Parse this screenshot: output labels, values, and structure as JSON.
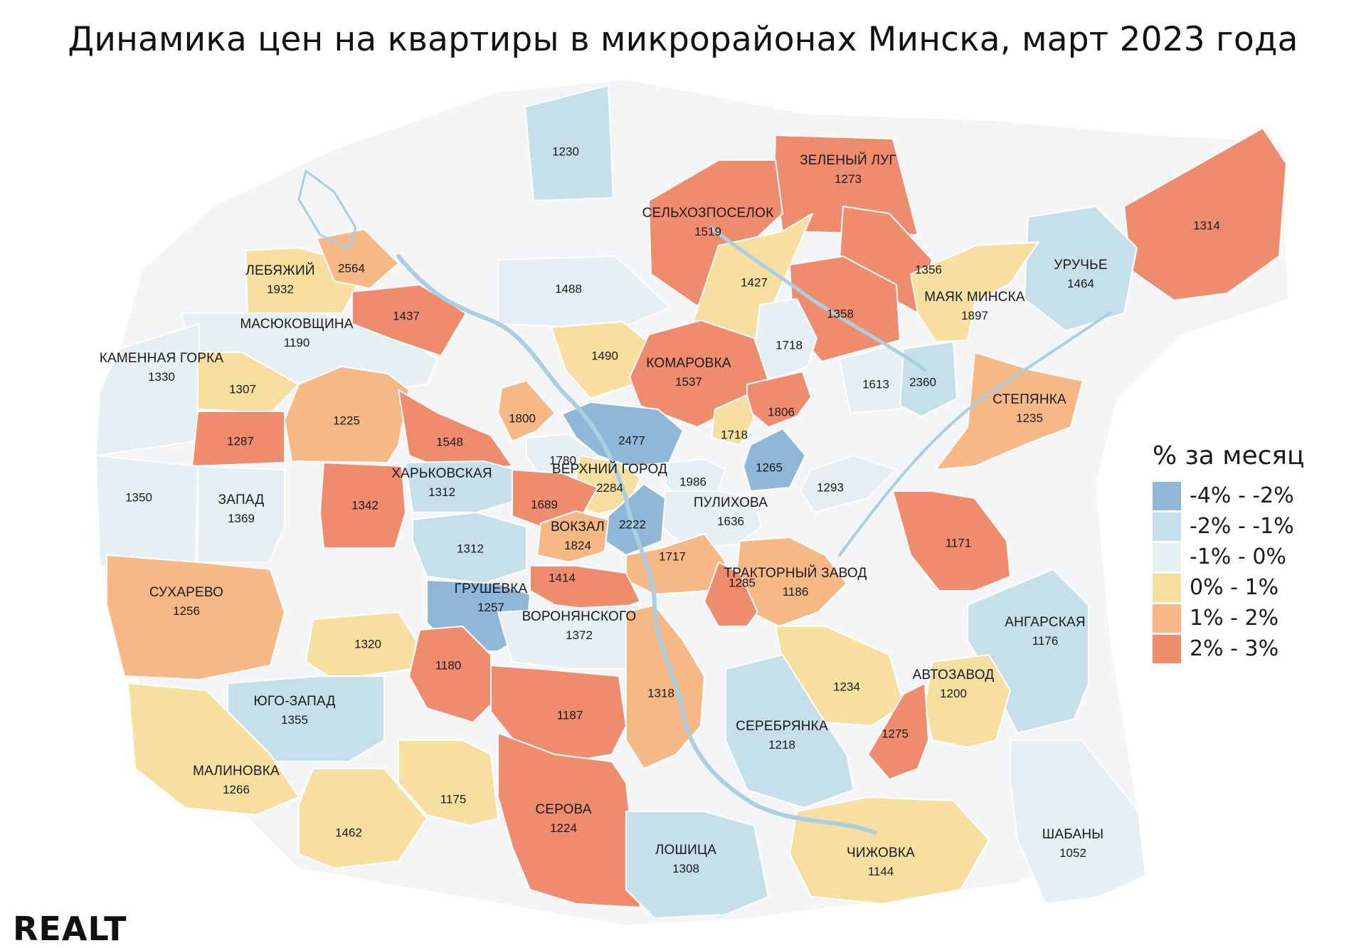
{
  "title": "Динамика цен на квартиры в микрорайонах Минска, март 2023 года",
  "logo": "REALT",
  "colors": {
    "outside": "#f4f5f6",
    "river": "#a8d0e0",
    "c1": "#8fb8d8",
    "c2": "#c6e0eb",
    "c3": "#e6f0f4",
    "c4": "#f7dfa0",
    "c5": "#f6b884",
    "c6": "#f08c6e"
  },
  "legend": {
    "title": "% за месяц",
    "items": [
      {
        "label": "-4% - -2%",
        "color": "#8fb8d8"
      },
      {
        "label": "-2% - -1%",
        "color": "#c6e0eb"
      },
      {
        "label": "-1% - 0%",
        "color": "#e6f0f4"
      },
      {
        "label": "0% - 1%",
        "color": "#f7dfa0"
      },
      {
        "label": "1% - 2%",
        "color": "#f6b884"
      },
      {
        "label": "2% - 3%",
        "color": "#f08c6e"
      }
    ]
  },
  "districts": [
    {
      "name": "",
      "price": "1230",
      "category": "-2% - -1%"
    },
    {
      "name": "ЗЕЛЕНЫЙ ЛУГ",
      "price": "1273",
      "category": "2% - 3%"
    },
    {
      "name": "СЕЛЬХОЗПОСЕЛОК",
      "price": "1519",
      "category": "2% - 3%"
    },
    {
      "name": "",
      "price": "1314",
      "category": "2% - 3%"
    },
    {
      "name": "ЛЕБЯЖИЙ",
      "price": "1932",
      "category": "0% - 1%"
    },
    {
      "name": "",
      "price": "2564",
      "category": "1% - 2%"
    },
    {
      "name": "",
      "price": "1488",
      "category": "-1% - 0%"
    },
    {
      "name": "",
      "price": "1427",
      "category": "0% - 1%"
    },
    {
      "name": "",
      "price": "1356",
      "category": "2% - 3%"
    },
    {
      "name": "УРУЧЬЕ",
      "price": "1464",
      "category": "-2% - -1%"
    },
    {
      "name": "МАСЮКОВЩИНА",
      "price": "1190",
      "category": "-1% - 0%"
    },
    {
      "name": "",
      "price": "1437",
      "category": "2% - 3%"
    },
    {
      "name": "",
      "price": "1358",
      "category": "2% - 3%"
    },
    {
      "name": "МАЯК МИНСКА",
      "price": "1897",
      "category": "0% - 1%"
    },
    {
      "name": "КАМЕННАЯ ГОРКА",
      "price": "1330",
      "category": "-1% - 0%"
    },
    {
      "name": "",
      "price": "1490",
      "category": "0% - 1%"
    },
    {
      "name": "",
      "price": "1718",
      "category": "-1% - 0%"
    },
    {
      "name": "КОМАРОВКА",
      "price": "1537",
      "category": "2% - 3%"
    },
    {
      "name": "",
      "price": "1307",
      "category": "0% - 1%"
    },
    {
      "name": "",
      "price": "1613",
      "category": "-1% - 0%"
    },
    {
      "name": "",
      "price": "2360",
      "category": "-2% - -1%"
    },
    {
      "name": "СТЕПЯНКА",
      "price": "1235",
      "category": "1% - 2%"
    },
    {
      "name": "",
      "price": "1225",
      "category": "1% - 2%"
    },
    {
      "name": "",
      "price": "1800",
      "category": "1% - 2%"
    },
    {
      "name": "",
      "price": "1806",
      "category": "2% - 3%"
    },
    {
      "name": "",
      "price": "2477",
      "category": "-4% - -2%"
    },
    {
      "name": "",
      "price": "1718",
      "category": "0% - 1%"
    },
    {
      "name": "",
      "price": "1287",
      "category": "2% - 3%"
    },
    {
      "name": "",
      "price": "1548",
      "category": "2% - 3%"
    },
    {
      "name": "",
      "price": "1780",
      "category": "-1% - 0%"
    },
    {
      "name": "ВЕРХНИЙ ГОРОД",
      "price": "2284",
      "category": "0% - 1%"
    },
    {
      "name": "",
      "price": "1265",
      "category": "-4% - -2%"
    },
    {
      "name": "ХАРЬКОВСКАЯ",
      "price": "1312",
      "category": "-2% - -1%"
    },
    {
      "name": "",
      "price": "1986",
      "category": "-1% - 0%"
    },
    {
      "name": "",
      "price": "1293",
      "category": "-1% - 0%"
    },
    {
      "name": "",
      "price": "1350",
      "category": "-1% - 0%"
    },
    {
      "name": "ЗАПАД",
      "price": "1369",
      "category": "-1% - 0%"
    },
    {
      "name": "",
      "price": "1342",
      "category": "2% - 3%"
    },
    {
      "name": "",
      "price": "1689",
      "category": "2% - 3%"
    },
    {
      "name": "ПУЛИХОВА",
      "price": "1636",
      "category": "-1% - 0%"
    },
    {
      "name": "",
      "price": "2222",
      "category": "-4% - -2%"
    },
    {
      "name": "ВОКЗАЛ",
      "price": "1824",
      "category": "1% - 2%"
    },
    {
      "name": "",
      "price": "1312",
      "category": "-2% - -1%"
    },
    {
      "name": "",
      "price": "1171",
      "category": "2% - 3%"
    },
    {
      "name": "",
      "price": "1717",
      "category": "1% - 2%"
    },
    {
      "name": "ТРАКТОРНЫЙ ЗАВОД",
      "price": "1186",
      "category": "1% - 2%"
    },
    {
      "name": "СУХАРЕВО",
      "price": "1256",
      "category": "1% - 2%"
    },
    {
      "name": "",
      "price": "1414",
      "category": "2% - 3%"
    },
    {
      "name": "ГРУШЕВКА",
      "price": "1257",
      "category": "-4% - -2%"
    },
    {
      "name": "",
      "price": "1285",
      "category": "2% - 3%"
    },
    {
      "name": "АНГАРСКАЯ",
      "price": "1176",
      "category": "-2% - -1%"
    },
    {
      "name": "ВОРОНЯНСКОГО",
      "price": "1372",
      "category": "-1% - 0%"
    },
    {
      "name": "",
      "price": "1320",
      "category": "0% - 1%"
    },
    {
      "name": "",
      "price": "1180",
      "category": "2% - 3%"
    },
    {
      "name": "АВТОЗАВОД",
      "price": "1200",
      "category": "0% - 1%"
    },
    {
      "name": "",
      "price": "1318",
      "category": "1% - 2%"
    },
    {
      "name": "",
      "price": "1234",
      "category": "0% - 1%"
    },
    {
      "name": "ЮГО-ЗАПАД",
      "price": "1355",
      "category": "-2% - -1%"
    },
    {
      "name": "",
      "price": "1187",
      "category": "2% - 3%"
    },
    {
      "name": "СЕРЕБРЯНКА",
      "price": "1218",
      "category": "-2% - -1%"
    },
    {
      "name": "",
      "price": "1275",
      "category": "2% - 3%"
    },
    {
      "name": "МАЛИНОВКА",
      "price": "1266",
      "category": "0% - 1%"
    },
    {
      "name": "",
      "price": "1175",
      "category": "0% - 1%"
    },
    {
      "name": "СЕРОВА",
      "price": "1224",
      "category": "2% - 3%"
    },
    {
      "name": "ШАБАНЫ",
      "price": "1052",
      "category": "-1% - 0%"
    },
    {
      "name": "",
      "price": "1462",
      "category": "0% - 1%"
    },
    {
      "name": "ЛОШИЦА",
      "price": "1308",
      "category": "-2% - -1%"
    },
    {
      "name": "ЧИЖОВКА",
      "price": "1144",
      "category": "0% - 1%"
    }
  ]
}
